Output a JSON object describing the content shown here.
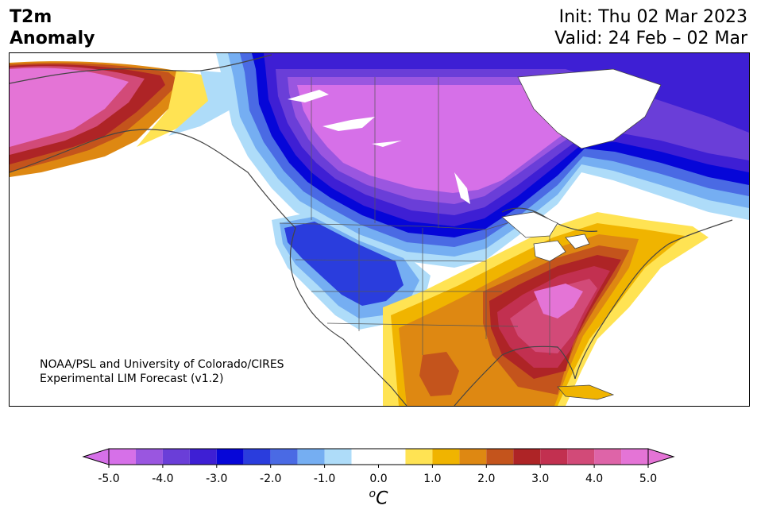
{
  "header": {
    "title_line1": "T2m",
    "title_line2": "Anomaly",
    "init_text": "Init: Thu 02 Mar 2023",
    "valid_text": "Valid: 24 Feb – 02 Mar"
  },
  "map": {
    "region": "North America",
    "variable": "2 m temperature anomaly",
    "credit_line1": "NOAA/PSL and University of Colorado/CIRES",
    "credit_line2": "Experimental LIM Forecast (v1.2)"
  },
  "colorbar": {
    "units_base": "C",
    "units_sup": "o",
    "ticks": [
      "-5.0",
      "-4.0",
      "-3.0",
      "-2.0",
      "-1.0",
      "0.0",
      "1.0",
      "2.0",
      "3.0",
      "4.0",
      "5.0"
    ],
    "min": -5.0,
    "max": 5.0,
    "extend": "both",
    "bins": [
      {
        "from": -5.0,
        "to": -4.5,
        "color": "#d670e8"
      },
      {
        "from": -4.5,
        "to": -4.0,
        "color": "#9a56e0"
      },
      {
        "from": -4.0,
        "to": -3.5,
        "color": "#6a3ed8"
      },
      {
        "from": -3.5,
        "to": -3.0,
        "color": "#3e1fd4"
      },
      {
        "from": -3.0,
        "to": -2.5,
        "color": "#0606d8"
      },
      {
        "from": -2.5,
        "to": -2.0,
        "color": "#2a3ddd"
      },
      {
        "from": -2.0,
        "to": -1.5,
        "color": "#4a6ae4"
      },
      {
        "from": -1.5,
        "to": -1.0,
        "color": "#75aef2"
      },
      {
        "from": -1.0,
        "to": -0.5,
        "color": "#aedcf9"
      },
      {
        "from": -0.5,
        "to": 0.5,
        "color": "#ffffff"
      },
      {
        "from": 0.5,
        "to": 1.0,
        "color": "#ffe353"
      },
      {
        "from": 1.0,
        "to": 1.5,
        "color": "#f0b400"
      },
      {
        "from": 1.5,
        "to": 2.0,
        "color": "#de8812"
      },
      {
        "from": 2.0,
        "to": 2.5,
        "color": "#c4541c"
      },
      {
        "from": 2.5,
        "to": 3.0,
        "color": "#ae2426"
      },
      {
        "from": 3.0,
        "to": 3.5,
        "color": "#c23050"
      },
      {
        "from": 3.5,
        "to": 4.0,
        "color": "#d24a78"
      },
      {
        "from": 4.0,
        "to": 4.5,
        "color": "#de64a8"
      },
      {
        "from": 4.5,
        "to": 5.0,
        "color": "#e474d6"
      }
    ],
    "under_color": "#d670e8",
    "over_color": "#e474d6"
  }
}
